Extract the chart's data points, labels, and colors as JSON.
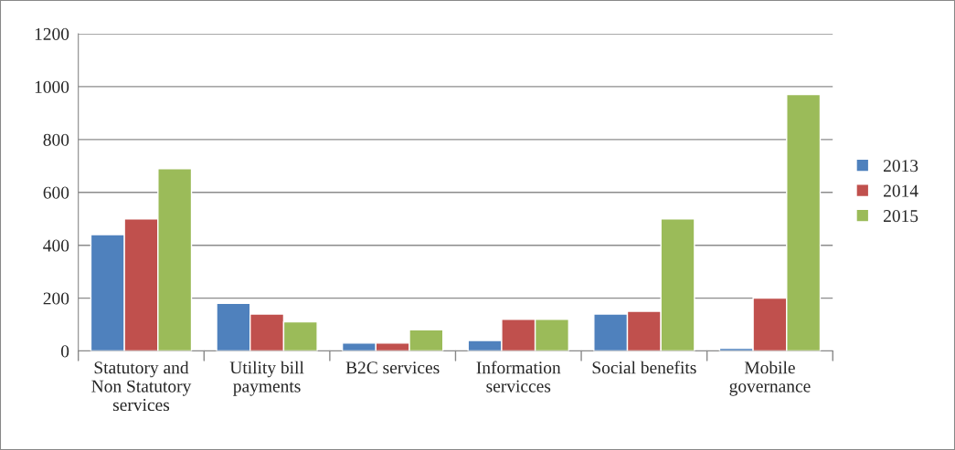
{
  "chart_data": {
    "type": "bar",
    "categories": [
      "Statutory and\nNon Statutory\nservices",
      "Utility bill\npayments",
      "B2C services",
      "Information\nservicces",
      "Social benefits",
      "Mobile\ngovernance"
    ],
    "series": [
      {
        "name": "2013",
        "color": "#4f81bd",
        "values": [
          440,
          180,
          30,
          40,
          140,
          10
        ]
      },
      {
        "name": "2014",
        "color": "#c0504d",
        "values": [
          500,
          140,
          30,
          120,
          150,
          200
        ]
      },
      {
        "name": "2015",
        "color": "#9bbb59",
        "values": [
          690,
          110,
          80,
          120,
          500,
          970
        ]
      }
    ],
    "ylim": [
      0,
      1200
    ],
    "yticks": [
      0,
      200,
      400,
      600,
      800,
      1000,
      1200
    ],
    "grid": "y",
    "legend": "right"
  }
}
